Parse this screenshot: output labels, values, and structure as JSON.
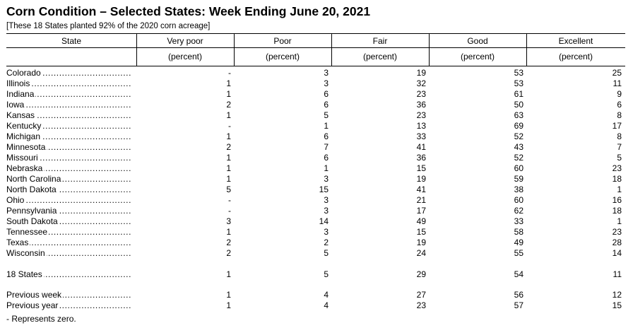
{
  "title": "Corn Condition – Selected States: Week Ending June 20, 2021",
  "subtitle": "[These 18 States planted 92% of the 2020 corn acreage]",
  "columns": {
    "state": "State",
    "very_poor": "Very poor",
    "poor": "Poor",
    "fair": "Fair",
    "good": "Good",
    "excellent": "Excellent",
    "unit": "(percent)"
  },
  "rows": [
    {
      "state": "Colorado",
      "very_poor": "-",
      "poor": "3",
      "fair": "19",
      "good": "53",
      "excellent": "25"
    },
    {
      "state": "Illinois",
      "very_poor": "1",
      "poor": "3",
      "fair": "32",
      "good": "53",
      "excellent": "11"
    },
    {
      "state": "Indiana",
      "very_poor": "1",
      "poor": "6",
      "fair": "23",
      "good": "61",
      "excellent": "9"
    },
    {
      "state": "Iowa",
      "very_poor": "2",
      "poor": "6",
      "fair": "36",
      "good": "50",
      "excellent": "6"
    },
    {
      "state": "Kansas",
      "very_poor": "1",
      "poor": "5",
      "fair": "23",
      "good": "63",
      "excellent": "8"
    },
    {
      "state": "Kentucky",
      "very_poor": "-",
      "poor": "1",
      "fair": "13",
      "good": "69",
      "excellent": "17"
    },
    {
      "state": "Michigan",
      "very_poor": "1",
      "poor": "6",
      "fair": "33",
      "good": "52",
      "excellent": "8"
    },
    {
      "state": "Minnesota",
      "very_poor": "2",
      "poor": "7",
      "fair": "41",
      "good": "43",
      "excellent": "7"
    },
    {
      "state": "Missouri",
      "very_poor": "1",
      "poor": "6",
      "fair": "36",
      "good": "52",
      "excellent": "5"
    },
    {
      "state": "Nebraska",
      "very_poor": "1",
      "poor": "1",
      "fair": "15",
      "good": "60",
      "excellent": "23"
    },
    {
      "state": "North Carolina",
      "very_poor": "1",
      "poor": "3",
      "fair": "19",
      "good": "59",
      "excellent": "18"
    },
    {
      "state": "North Dakota",
      "very_poor": "5",
      "poor": "15",
      "fair": "41",
      "good": "38",
      "excellent": "1"
    },
    {
      "state": "Ohio",
      "very_poor": "-",
      "poor": "3",
      "fair": "21",
      "good": "60",
      "excellent": "16"
    },
    {
      "state": "Pennsylvania",
      "very_poor": "-",
      "poor": "3",
      "fair": "17",
      "good": "62",
      "excellent": "18"
    },
    {
      "state": "South Dakota",
      "very_poor": "3",
      "poor": "14",
      "fair": "49",
      "good": "33",
      "excellent": "1"
    },
    {
      "state": "Tennessee",
      "very_poor": "1",
      "poor": "3",
      "fair": "15",
      "good": "58",
      "excellent": "23"
    },
    {
      "state": "Texas",
      "very_poor": "2",
      "poor": "2",
      "fair": "19",
      "good": "49",
      "excellent": "28"
    },
    {
      "state": "Wisconsin",
      "very_poor": "2",
      "poor": "5",
      "fair": "24",
      "good": "55",
      "excellent": "14"
    }
  ],
  "summary": [
    {
      "state": "18 States",
      "very_poor": "1",
      "poor": "5",
      "fair": "29",
      "good": "54",
      "excellent": "11"
    },
    {
      "state": "Previous week",
      "very_poor": "1",
      "poor": "4",
      "fair": "27",
      "good": "56",
      "excellent": "12"
    },
    {
      "state": "Previous year",
      "very_poor": "1",
      "poor": "4",
      "fair": "23",
      "good": "57",
      "excellent": "15"
    }
  ],
  "footnote": "- Represents zero."
}
